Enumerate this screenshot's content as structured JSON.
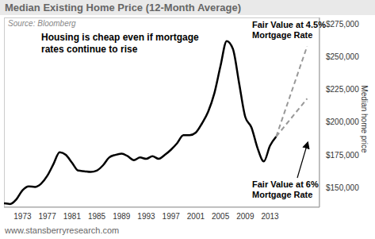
{
  "chart_data": {
    "type": "line",
    "title": "Median Existing Home Price (12-Month Average)",
    "source": "Source: Bloomberg",
    "footer": "www.stansberryresearch.com",
    "y_label": "Median home price",
    "annotations": [
      "Housing is cheap even if mortgage rates continue to rise"
    ],
    "x": [
      1970,
      1971,
      1972,
      1973,
      1974,
      1975,
      1976,
      1977,
      1978,
      1979,
      1980,
      1981,
      1982,
      1983,
      1984,
      1985,
      1986,
      1987,
      1988,
      1989,
      1990,
      1991,
      1992,
      1993,
      1994,
      1995,
      1996,
      1997,
      1998,
      1999,
      2000,
      2001,
      2002,
      2003,
      2004,
      2005,
      2006,
      2007,
      2008,
      2009,
      2010,
      2011,
      2012,
      2013,
      2014,
      2019
    ],
    "series": [
      {
        "color": "#000000",
        "line_style": "solid",
        "values": [
          138000,
          137500,
          141000,
          148000,
          151000,
          150500,
          153000,
          159000,
          168000,
          177000,
          175000,
          169000,
          163000,
          162500,
          162000,
          163000,
          167000,
          173000,
          175000,
          176000,
          174000,
          171000,
          173000,
          172000,
          174000,
          172000,
          175000,
          179000,
          184000,
          190000,
          190000,
          192000,
          199000,
          208000,
          222000,
          243000,
          262000,
          256000,
          230000,
          204000,
          196000,
          180000,
          170000,
          182000,
          189000,
          null
        ]
      },
      {
        "name": "Fair Value at 4.5% Mortgage Rate",
        "color": "#999999",
        "line_style": "dashed",
        "values": [
          null,
          null,
          null,
          null,
          null,
          null,
          null,
          null,
          null,
          null,
          null,
          null,
          null,
          null,
          null,
          null,
          null,
          null,
          null,
          null,
          null,
          null,
          null,
          null,
          null,
          null,
          null,
          null,
          null,
          null,
          null,
          null,
          null,
          null,
          null,
          null,
          null,
          null,
          null,
          null,
          null,
          null,
          null,
          null,
          189000,
          258000
        ]
      },
      {
        "name": "Fair Value at 6% Mortgage Rate",
        "color": "#999999",
        "line_style": "dashed",
        "values": [
          null,
          null,
          null,
          null,
          null,
          null,
          null,
          null,
          null,
          null,
          null,
          null,
          null,
          null,
          null,
          null,
          null,
          null,
          null,
          null,
          null,
          null,
          null,
          null,
          null,
          null,
          null,
          null,
          null,
          null,
          null,
          null,
          null,
          null,
          null,
          null,
          null,
          null,
          null,
          null,
          null,
          null,
          null,
          null,
          189000,
          218000
        ]
      }
    ],
    "xlim": [
      1970,
      2021
    ],
    "ylim": [
      135000,
      280000
    ],
    "xticks": [
      1973,
      1977,
      1981,
      1985,
      1989,
      1993,
      1997,
      2001,
      2005,
      2009,
      2013
    ],
    "yticks": [
      {
        "value": 150000,
        "label": "$150,000"
      },
      {
        "value": 175000,
        "label": "$175,000"
      },
      {
        "value": 200000,
        "label": "$200,000"
      },
      {
        "value": 225000,
        "label": "$225,000"
      },
      {
        "value": 250000,
        "label": "$250,000"
      },
      {
        "value": 275000,
        "label": "$275,000"
      }
    ],
    "grid": false
  }
}
